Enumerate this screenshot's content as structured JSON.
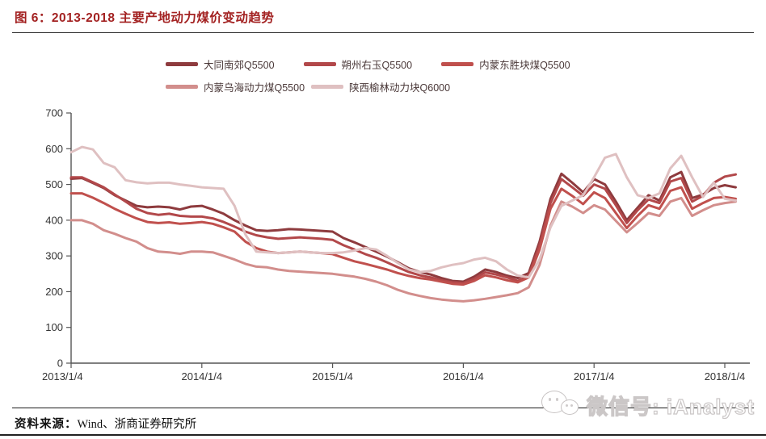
{
  "title": "图 6：2013-2018 主要产地动力煤价变动趋势",
  "source_note": {
    "label": "资料来源：",
    "text": "Wind、浙商证券研究所"
  },
  "watermark": {
    "icon": "wechat-icon",
    "text": "微信号: iAnalyst"
  },
  "colors": {
    "title_red": "#a32222",
    "axis": "#555555",
    "tick_text": "#333333",
    "legend_text": "#4a3838"
  },
  "chart_data": {
    "type": "line",
    "title": "",
    "xlabel": "",
    "ylabel": "",
    "grid": false,
    "legend_position": "top",
    "ylim": [
      0,
      700
    ],
    "y_ticks": [
      0,
      100,
      200,
      300,
      400,
      500,
      600,
      700
    ],
    "x_tick_labels": [
      "2013/1/4",
      "2014/1/4",
      "2015/1/4",
      "2016/1/4",
      "2017/1/4",
      "2018/1/4"
    ],
    "x": [
      "2013/1",
      "2013/2",
      "2013/3",
      "2013/4",
      "2013/5",
      "2013/6",
      "2013/7",
      "2013/8",
      "2013/9",
      "2013/10",
      "2013/11",
      "2013/12",
      "2014/1",
      "2014/2",
      "2014/3",
      "2014/4",
      "2014/5",
      "2014/6",
      "2014/7",
      "2014/8",
      "2014/9",
      "2014/10",
      "2014/11",
      "2014/12",
      "2015/1",
      "2015/2",
      "2015/3",
      "2015/4",
      "2015/5",
      "2015/6",
      "2015/7",
      "2015/8",
      "2015/9",
      "2015/10",
      "2015/11",
      "2015/12",
      "2016/1",
      "2016/2",
      "2016/3",
      "2016/4",
      "2016/5",
      "2016/6",
      "2016/7",
      "2016/8",
      "2016/9",
      "2016/10",
      "2016/11",
      "2016/12",
      "2017/1",
      "2017/2",
      "2017/3",
      "2017/4",
      "2017/5",
      "2017/6",
      "2017/7",
      "2017/8",
      "2017/9",
      "2017/10",
      "2017/11",
      "2017/12",
      "2018/1",
      "2018/2"
    ],
    "series": [
      {
        "name": "大同南郊Q5500",
        "color": "#8e3b3e",
        "values": [
          516,
          518,
          504,
          490,
          470,
          455,
          440,
          436,
          438,
          436,
          430,
          438,
          440,
          430,
          418,
          400,
          385,
          372,
          370,
          372,
          375,
          374,
          372,
          370,
          368,
          350,
          338,
          325,
          312,
          298,
          282,
          265,
          255,
          248,
          238,
          230,
          228,
          242,
          262,
          255,
          245,
          238,
          252,
          340,
          460,
          530,
          505,
          478,
          515,
          500,
          452,
          400,
          435,
          470,
          455,
          520,
          535,
          462,
          472,
          490,
          498,
          492
        ]
      },
      {
        "name": "朔州右玉Q5500",
        "color": "#b2484a",
        "values": [
          520,
          520,
          506,
          492,
          472,
          452,
          432,
          420,
          415,
          418,
          412,
          410,
          410,
          405,
          395,
          382,
          368,
          358,
          352,
          348,
          350,
          352,
          350,
          348,
          345,
          330,
          318,
          305,
          295,
          282,
          268,
          255,
          246,
          240,
          232,
          226,
          224,
          236,
          254,
          248,
          240,
          230,
          244,
          330,
          448,
          515,
          492,
          468,
          500,
          488,
          442,
          392,
          428,
          458,
          448,
          508,
          518,
          452,
          468,
          505,
          522,
          528
        ]
      },
      {
        "name": "内蒙东胜块煤Q5500",
        "color": "#c0504d",
        "values": [
          475,
          475,
          463,
          448,
          432,
          418,
          405,
          395,
          392,
          394,
          390,
          392,
          395,
          390,
          380,
          368,
          340,
          322,
          312,
          308,
          310,
          312,
          310,
          308,
          305,
          295,
          285,
          278,
          270,
          262,
          252,
          244,
          238,
          234,
          228,
          222,
          220,
          230,
          246,
          240,
          232,
          226,
          240,
          318,
          432,
          488,
          468,
          445,
          478,
          462,
          420,
          378,
          412,
          442,
          432,
          482,
          492,
          432,
          448,
          462,
          465,
          460
        ]
      },
      {
        "name": "内蒙乌海动力煤Q5500",
        "color": "#d28e8c",
        "values": [
          400,
          400,
          390,
          372,
          362,
          350,
          340,
          322,
          312,
          310,
          306,
          312,
          312,
          310,
          300,
          290,
          278,
          270,
          268,
          262,
          258,
          256,
          254,
          252,
          250,
          246,
          242,
          236,
          228,
          218,
          205,
          195,
          188,
          182,
          178,
          175,
          173,
          176,
          180,
          185,
          190,
          196,
          212,
          275,
          385,
          452,
          438,
          420,
          442,
          430,
          398,
          366,
          392,
          420,
          412,
          452,
          462,
          412,
          428,
          442,
          448,
          452
        ]
      },
      {
        "name": "陕西榆林动力块Q6000",
        "color": "#dfc0c1",
        "values": [
          590,
          605,
          598,
          560,
          548,
          512,
          506,
          503,
          505,
          505,
          500,
          496,
          492,
          490,
          488,
          440,
          360,
          312,
          310,
          308,
          310,
          312,
          310,
          308,
          308,
          310,
          315,
          322,
          318,
          300,
          280,
          262,
          255,
          258,
          268,
          275,
          280,
          290,
          295,
          285,
          262,
          245,
          240,
          290,
          380,
          440,
          455,
          470,
          520,
          575,
          585,
          520,
          470,
          462,
          475,
          545,
          580,
          520,
          465,
          505,
          460,
          455
        ]
      }
    ]
  }
}
